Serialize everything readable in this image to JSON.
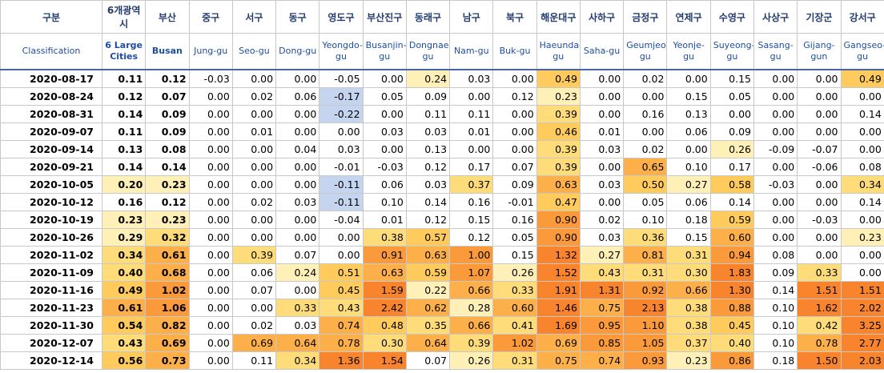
{
  "header": {
    "korean": [
      "구분",
      "6개광역시",
      "부산",
      "중구",
      "서구",
      "동구",
      "영도구",
      "부산진구",
      "동래구",
      "남구",
      "북구",
      "해운대구",
      "사하구",
      "금정구",
      "연제구",
      "수영구",
      "사상구",
      "기장군",
      "강서구"
    ],
    "english": [
      "Classification",
      "6 Large Cities",
      "Busan",
      "Jung-gu",
      "Seo-gu",
      "Dong-gu",
      "Yeongdo-gu",
      "Busanjin-gu",
      "Dongnae-gu",
      "Nam-gu",
      "Buk-gu",
      "Haeundae-gu",
      "Saha-gu",
      "Geumjeong-gu",
      "Yeonje-gu",
      "Suyeong-gu",
      "Sasang-gu",
      "Gijang-gun",
      "Gangseo-gu"
    ]
  },
  "table": {
    "rows": [
      [
        "2020-08-17",
        "0.11",
        "0.12",
        "-0.03",
        "0.00",
        "0.00",
        "-0.05",
        "0.00",
        "0.24",
        "0.03",
        "0.00",
        "0.49",
        "0.00",
        "0.02",
        "0.00",
        "0.15",
        "0.00",
        "0.00",
        "0.49"
      ],
      [
        "2020-08-24",
        "0.12",
        "0.07",
        "0.00",
        "0.02",
        "0.06",
        "-0.17",
        "0.05",
        "0.09",
        "0.00",
        "0.12",
        "0.23",
        "0.00",
        "0.00",
        "0.15",
        "0.05",
        "0.00",
        "0.00",
        "0.00"
      ],
      [
        "2020-08-31",
        "0.14",
        "0.09",
        "0.00",
        "0.00",
        "0.00",
        "-0.22",
        "0.00",
        "0.11",
        "0.11",
        "0.00",
        "0.39",
        "0.00",
        "0.16",
        "0.13",
        "0.00",
        "0.00",
        "0.00",
        "0.14"
      ],
      [
        "2020-09-07",
        "0.11",
        "0.09",
        "0.00",
        "0.01",
        "0.00",
        "0.00",
        "0.03",
        "0.03",
        "0.01",
        "0.00",
        "0.46",
        "0.01",
        "0.00",
        "0.06",
        "0.09",
        "0.00",
        "0.00",
        "0.00"
      ],
      [
        "2020-09-14",
        "0.13",
        "0.08",
        "0.00",
        "0.00",
        "0.04",
        "0.03",
        "0.00",
        "0.13",
        "0.00",
        "0.00",
        "0.39",
        "0.03",
        "0.02",
        "0.00",
        "0.26",
        "-0.09",
        "-0.07",
        "0.00"
      ],
      [
        "2020-09-21",
        "0.14",
        "0.14",
        "0.00",
        "0.00",
        "0.00",
        "-0.01",
        "-0.03",
        "0.12",
        "0.17",
        "0.07",
        "0.39",
        "0.00",
        "0.65",
        "0.10",
        "0.17",
        "0.00",
        "-0.06",
        "0.08"
      ],
      [
        "2020-10-05",
        "0.20",
        "0.23",
        "0.00",
        "0.00",
        "0.00",
        "-0.11",
        "0.06",
        "0.03",
        "0.37",
        "0.09",
        "0.63",
        "0.03",
        "0.50",
        "0.27",
        "0.58",
        "-0.03",
        "0.00",
        "0.34"
      ],
      [
        "2020-10-12",
        "0.16",
        "0.12",
        "0.00",
        "0.02",
        "0.03",
        "-0.11",
        "0.10",
        "0.14",
        "0.16",
        "-0.01",
        "0.47",
        "0.00",
        "0.05",
        "0.06",
        "0.14",
        "0.00",
        "0.00",
        "0.14"
      ],
      [
        "2020-10-19",
        "0.23",
        "0.23",
        "0.00",
        "0.00",
        "0.00",
        "-0.04",
        "0.01",
        "0.12",
        "0.15",
        "0.16",
        "0.90",
        "0.02",
        "0.10",
        "0.18",
        "0.59",
        "0.00",
        "-0.03",
        "0.00"
      ],
      [
        "2020-10-26",
        "0.29",
        "0.32",
        "0.00",
        "0.00",
        "0.00",
        "0.00",
        "0.38",
        "0.57",
        "0.12",
        "0.05",
        "0.90",
        "0.03",
        "0.36",
        "0.15",
        "0.60",
        "0.00",
        "0.00",
        "0.23"
      ],
      [
        "2020-11-02",
        "0.34",
        "0.61",
        "0.00",
        "0.39",
        "0.07",
        "0.00",
        "0.91",
        "0.63",
        "1.00",
        "0.15",
        "1.32",
        "0.27",
        "0.81",
        "0.31",
        "0.94",
        "0.08",
        "0.00",
        "0.00"
      ],
      [
        "2020-11-09",
        "0.40",
        "0.68",
        "0.00",
        "0.06",
        "0.24",
        "0.51",
        "0.63",
        "0.59",
        "1.07",
        "0.26",
        "1.52",
        "0.43",
        "0.31",
        "0.30",
        "1.83",
        "0.09",
        "0.33",
        "0.00"
      ],
      [
        "2020-11-16",
        "0.49",
        "1.02",
        "0.00",
        "0.07",
        "0.00",
        "0.45",
        "1.59",
        "0.22",
        "0.66",
        "0.33",
        "1.91",
        "1.31",
        "0.92",
        "0.66",
        "1.30",
        "0.14",
        "1.51",
        "1.51"
      ],
      [
        "2020-11-23",
        "0.61",
        "1.06",
        "0.00",
        "0.00",
        "0.33",
        "0.43",
        "2.42",
        "0.62",
        "0.28",
        "0.60",
        "1.46",
        "0.75",
        "2.13",
        "0.38",
        "0.88",
        "0.10",
        "1.62",
        "2.02"
      ],
      [
        "2020-11-30",
        "0.54",
        "0.82",
        "0.00",
        "0.02",
        "0.03",
        "0.74",
        "0.48",
        "0.35",
        "0.66",
        "0.41",
        "1.69",
        "0.95",
        "1.10",
        "0.38",
        "0.45",
        "0.10",
        "0.42",
        "3.25"
      ],
      [
        "2020-12-07",
        "0.43",
        "0.69",
        "0.00",
        "0.69",
        "0.64",
        "0.78",
        "0.30",
        "0.64",
        "0.39",
        "1.02",
        "0.69",
        "0.85",
        "1.05",
        "0.37",
        "0.40",
        "0.10",
        "0.78",
        "2.77"
      ],
      [
        "2020-12-14",
        "0.56",
        "0.73",
        "0.00",
        "0.11",
        "0.34",
        "1.36",
        "1.54",
        "0.07",
        "0.26",
        "0.31",
        "0.75",
        "0.74",
        "0.93",
        "0.23",
        "0.86",
        "0.18",
        "1.50",
        "2.03"
      ]
    ]
  }
}
